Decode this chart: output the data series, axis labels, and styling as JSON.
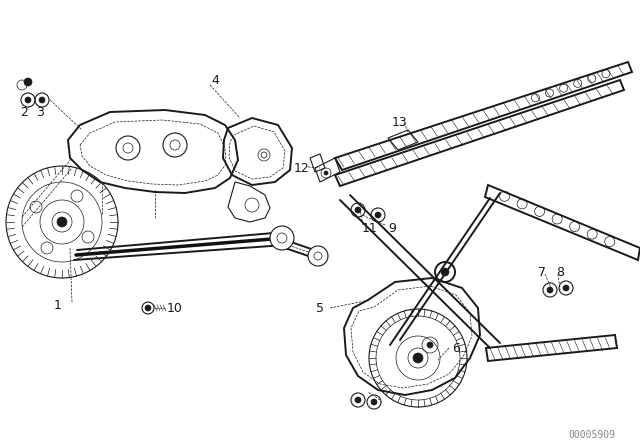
{
  "background_color": "#ffffff",
  "diagram_color": "#1a1a1a",
  "watermark": "00005909",
  "watermark_color": "#888888",
  "label_font_size": 9,
  "watermark_font_size": 7
}
